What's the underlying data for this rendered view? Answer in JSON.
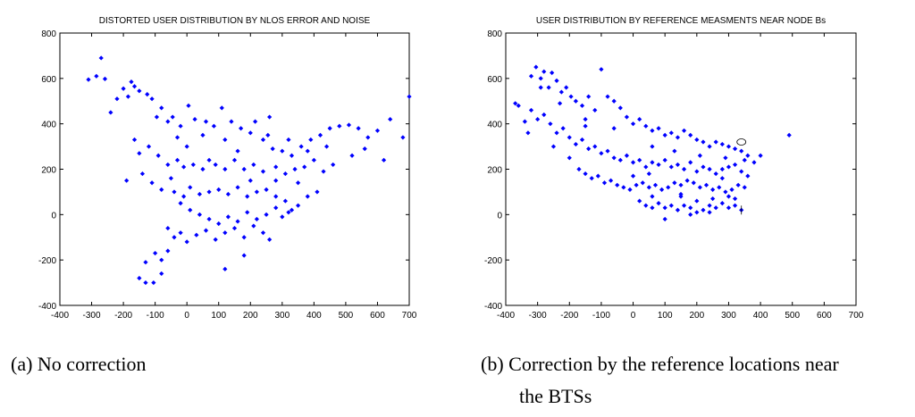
{
  "captions": {
    "a": "(a) No correction",
    "b_line1": "(b) Correction by the reference locations near",
    "b_line2": "the BTSs"
  },
  "colors": {
    "marker": "#0000ff",
    "axis": "#000000",
    "background": "#ffffff"
  },
  "chart_data": [
    {
      "type": "scatter",
      "title": "DISTORTED USER DISTRIBUTION BY NLOS ERROR AND NOISE",
      "xlabel": "",
      "ylabel": "",
      "xlim": [
        -400,
        700
      ],
      "ylim": [
        -400,
        800
      ],
      "xticks": [
        -400,
        -300,
        -200,
        -100,
        0,
        100,
        200,
        300,
        400,
        500,
        600,
        700
      ],
      "yticks": [
        -400,
        -200,
        0,
        200,
        400,
        600,
        800
      ],
      "grid": false,
      "marker": "diamond",
      "marker_color": "#0000ff",
      "points": [
        [
          -310,
          595
        ],
        [
          -285,
          610
        ],
        [
          -270,
          690
        ],
        [
          -258,
          598
        ],
        [
          -200,
          555
        ],
        [
          -185,
          520
        ],
        [
          -175,
          585
        ],
        [
          -165,
          565
        ],
        [
          -150,
          545
        ],
        [
          -125,
          530
        ],
        [
          -110,
          510
        ],
        [
          -95,
          430
        ],
        [
          -80,
          470
        ],
        [
          -60,
          410
        ],
        [
          -45,
          430
        ],
        [
          -20,
          390
        ],
        [
          5,
          480
        ],
        [
          25,
          420
        ],
        [
          60,
          410
        ],
        [
          85,
          390
        ],
        [
          110,
          470
        ],
        [
          140,
          410
        ],
        [
          170,
          380
        ],
        [
          200,
          360
        ],
        [
          215,
          410
        ],
        [
          240,
          330
        ],
        [
          255,
          350
        ],
        [
          270,
          290
        ],
        [
          300,
          280
        ],
        [
          330,
          260
        ],
        [
          360,
          300
        ],
        [
          390,
          330
        ],
        [
          420,
          350
        ],
        [
          450,
          380
        ],
        [
          480,
          390
        ],
        [
          510,
          395
        ],
        [
          540,
          380
        ],
        [
          570,
          340
        ],
        [
          600,
          370
        ],
        [
          640,
          420
        ],
        [
          680,
          340
        ],
        [
          700,
          520
        ],
        [
          -165,
          330
        ],
        [
          -150,
          270
        ],
        [
          -120,
          300
        ],
        [
          -90,
          260
        ],
        [
          -60,
          220
        ],
        [
          -30,
          240
        ],
        [
          -10,
          210
        ],
        [
          20,
          220
        ],
        [
          50,
          200
        ],
        [
          70,
          240
        ],
        [
          90,
          220
        ],
        [
          120,
          200
        ],
        [
          150,
          240
        ],
        [
          180,
          200
        ],
        [
          210,
          220
        ],
        [
          240,
          190
        ],
        [
          280,
          210
        ],
        [
          310,
          180
        ],
        [
          340,
          200
        ],
        [
          370,
          210
        ],
        [
          400,
          240
        ],
        [
          430,
          190
        ],
        [
          460,
          220
        ],
        [
          -190,
          150
        ],
        [
          -140,
          180
        ],
        [
          -110,
          140
        ],
        [
          -80,
          110
        ],
        [
          -40,
          100
        ],
        [
          -10,
          80
        ],
        [
          10,
          120
        ],
        [
          40,
          90
        ],
        [
          70,
          100
        ],
        [
          100,
          110
        ],
        [
          130,
          90
        ],
        [
          160,
          120
        ],
        [
          190,
          80
        ],
        [
          220,
          100
        ],
        [
          250,
          110
        ],
        [
          280,
          80
        ],
        [
          310,
          60
        ],
        [
          330,
          20
        ],
        [
          350,
          40
        ],
        [
          380,
          80
        ],
        [
          410,
          100
        ],
        [
          -20,
          50
        ],
        [
          10,
          20
        ],
        [
          40,
          0
        ],
        [
          70,
          -20
        ],
        [
          100,
          -40
        ],
        [
          130,
          -10
        ],
        [
          160,
          -30
        ],
        [
          190,
          10
        ],
        [
          220,
          -20
        ],
        [
          250,
          0
        ],
        [
          280,
          30
        ],
        [
          300,
          -10
        ],
        [
          320,
          10
        ],
        [
          -60,
          -60
        ],
        [
          -40,
          -100
        ],
        [
          -20,
          -80
        ],
        [
          0,
          -120
        ],
        [
          30,
          -90
        ],
        [
          60,
          -70
        ],
        [
          90,
          -110
        ],
        [
          120,
          -80
        ],
        [
          150,
          -60
        ],
        [
          180,
          -100
        ],
        [
          210,
          -50
        ],
        [
          240,
          -80
        ],
        [
          -100,
          -170
        ],
        [
          -80,
          -200
        ],
        [
          -60,
          -160
        ],
        [
          -130,
          -210
        ],
        [
          -150,
          -280
        ],
        [
          -130,
          -300
        ],
        [
          -105,
          -300
        ],
        [
          -80,
          -260
        ],
        [
          120,
          -240
        ],
        [
          180,
          -180
        ],
        [
          260,
          -110
        ],
        [
          -220,
          510
        ],
        [
          -240,
          450
        ],
        [
          -30,
          340
        ],
        [
          50,
          350
        ],
        [
          120,
          330
        ],
        [
          260,
          430
        ],
        [
          320,
          330
        ],
        [
          380,
          280
        ],
        [
          440,
          300
        ],
        [
          520,
          260
        ],
        [
          560,
          290
        ],
        [
          620,
          240
        ],
        [
          0,
          300
        ],
        [
          -50,
          160
        ],
        [
          160,
          280
        ],
        [
          200,
          150
        ],
        [
          280,
          150
        ],
        [
          350,
          140
        ]
      ]
    },
    {
      "type": "scatter",
      "title": "USER DISTRIBUTION BY REFERENCE MEASMENTS NEAR NODE Bs",
      "xlabel": "",
      "ylabel": "",
      "xlim": [
        -400,
        700
      ],
      "ylim": [
        -400,
        800
      ],
      "xticks": [
        -400,
        -300,
        -200,
        -100,
        0,
        100,
        200,
        300,
        400,
        500,
        600,
        700
      ],
      "yticks": [
        -400,
        -200,
        0,
        200,
        400,
        600,
        800
      ],
      "grid": false,
      "marker": "diamond",
      "marker_color": "#0000ff",
      "points": [
        [
          -370,
          490
        ],
        [
          -360,
          480
        ],
        [
          -340,
          410
        ],
        [
          -330,
          360
        ],
        [
          -320,
          610
        ],
        [
          -305,
          650
        ],
        [
          -290,
          600
        ],
        [
          -280,
          630
        ],
        [
          -265,
          560
        ],
        [
          -255,
          625
        ],
        [
          -240,
          590
        ],
        [
          -225,
          540
        ],
        [
          -210,
          560
        ],
        [
          -195,
          520
        ],
        [
          -180,
          500
        ],
        [
          -160,
          480
        ],
        [
          -140,
          520
        ],
        [
          -120,
          460
        ],
        [
          -100,
          640
        ],
        [
          -80,
          520
        ],
        [
          -60,
          500
        ],
        [
          -40,
          470
        ],
        [
          -20,
          430
        ],
        [
          0,
          400
        ],
        [
          20,
          420
        ],
        [
          40,
          390
        ],
        [
          60,
          370
        ],
        [
          80,
          380
        ],
        [
          100,
          350
        ],
        [
          120,
          360
        ],
        [
          140,
          340
        ],
        [
          160,
          370
        ],
        [
          180,
          350
        ],
        [
          200,
          330
        ],
        [
          220,
          320
        ],
        [
          240,
          300
        ],
        [
          260,
          320
        ],
        [
          280,
          310
        ],
        [
          300,
          300
        ],
        [
          320,
          290
        ],
        [
          340,
          280
        ],
        [
          360,
          260
        ],
        [
          380,
          230
        ],
        [
          400,
          260
        ],
        [
          490,
          350
        ],
        [
          -320,
          460
        ],
        [
          -300,
          420
        ],
        [
          -280,
          440
        ],
        [
          -260,
          400
        ],
        [
          -240,
          360
        ],
        [
          -220,
          380
        ],
        [
          -200,
          340
        ],
        [
          -180,
          310
        ],
        [
          -160,
          330
        ],
        [
          -140,
          290
        ],
        [
          -120,
          300
        ],
        [
          -100,
          270
        ],
        [
          -80,
          280
        ],
        [
          -60,
          250
        ],
        [
          -40,
          240
        ],
        [
          -20,
          260
        ],
        [
          0,
          230
        ],
        [
          20,
          240
        ],
        [
          40,
          210
        ],
        [
          60,
          230
        ],
        [
          80,
          220
        ],
        [
          100,
          240
        ],
        [
          120,
          210
        ],
        [
          140,
          220
        ],
        [
          160,
          200
        ],
        [
          180,
          230
        ],
        [
          200,
          190
        ],
        [
          220,
          210
        ],
        [
          240,
          200
        ],
        [
          260,
          180
        ],
        [
          280,
          200
        ],
        [
          300,
          210
        ],
        [
          320,
          220
        ],
        [
          340,
          190
        ],
        [
          360,
          170
        ],
        [
          -170,
          200
        ],
        [
          -150,
          180
        ],
        [
          -130,
          160
        ],
        [
          -110,
          170
        ],
        [
          -90,
          140
        ],
        [
          -70,
          150
        ],
        [
          -50,
          130
        ],
        [
          -30,
          120
        ],
        [
          -10,
          110
        ],
        [
          10,
          130
        ],
        [
          30,
          140
        ],
        [
          50,
          120
        ],
        [
          70,
          130
        ],
        [
          90,
          110
        ],
        [
          110,
          120
        ],
        [
          130,
          140
        ],
        [
          150,
          130
        ],
        [
          170,
          150
        ],
        [
          190,
          140
        ],
        [
          210,
          120
        ],
        [
          230,
          130
        ],
        [
          250,
          110
        ],
        [
          270,
          120
        ],
        [
          290,
          100
        ],
        [
          310,
          110
        ],
        [
          330,
          130
        ],
        [
          350,
          120
        ],
        [
          20,
          60
        ],
        [
          40,
          40
        ],
        [
          60,
          30
        ],
        [
          80,
          50
        ],
        [
          100,
          30
        ],
        [
          120,
          40
        ],
        [
          140,
          20
        ],
        [
          160,
          40
        ],
        [
          180,
          30
        ],
        [
          200,
          10
        ],
        [
          220,
          20
        ],
        [
          240,
          40
        ],
        [
          260,
          30
        ],
        [
          280,
          50
        ],
        [
          300,
          30
        ],
        [
          320,
          40
        ],
        [
          340,
          20
        ],
        [
          100,
          -20
        ],
        [
          180,
          0
        ],
        [
          240,
          10
        ],
        [
          60,
          80
        ],
        [
          150,
          80
        ],
        [
          250,
          70
        ],
        [
          300,
          80
        ],
        [
          -200,
          250
        ],
        [
          -250,
          300
        ],
        [
          -230,
          490
        ],
        [
          -150,
          420
        ],
        [
          -60,
          380
        ],
        [
          60,
          300
        ],
        [
          130,
          280
        ],
        [
          210,
          260
        ],
        [
          290,
          250
        ],
        [
          350,
          240
        ],
        [
          -290,
          560
        ],
        [
          -150,
          390
        ],
        [
          0,
          170
        ],
        [
          50,
          180
        ],
        [
          150,
          90
        ],
        [
          200,
          60
        ],
        [
          280,
          160
        ],
        [
          320,
          70
        ]
      ],
      "annotations": [
        {
          "label": "circle-marker",
          "x": 340,
          "y": 320
        },
        {
          "label": "bracket-marker",
          "x": 340,
          "y": 20
        }
      ]
    }
  ]
}
